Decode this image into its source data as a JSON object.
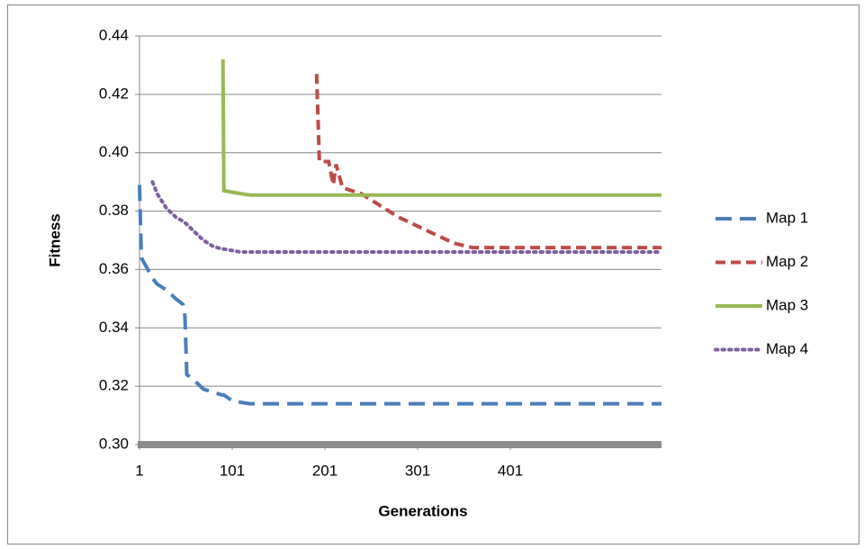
{
  "chart_data": {
    "type": "line",
    "x_label": "Generations",
    "y_label": "Fitness",
    "x": [
      1,
      3,
      10,
      15,
      20,
      30,
      40,
      48,
      50,
      52,
      60,
      70,
      80,
      90,
      91,
      92,
      101,
      110,
      120,
      140,
      160,
      180,
      192,
      195,
      205,
      210,
      213,
      220,
      240,
      260,
      280,
      300,
      320,
      340,
      360,
      400,
      450,
      500,
      564
    ],
    "series": [
      {
        "name": "Map 1",
        "color": "#4a7ebb",
        "dash": "long-dash",
        "values": [
          0.389,
          0.364,
          0.36,
          0.357,
          0.355,
          0.353,
          0.35,
          0.348,
          0.344,
          0.324,
          0.322,
          0.319,
          0.318,
          0.317,
          0.317,
          0.317,
          0.315,
          0.3145,
          0.314,
          0.314,
          0.314,
          0.314,
          0.314,
          0.314,
          0.314,
          0.314,
          0.314,
          0.314,
          0.314,
          0.314,
          0.314,
          0.314,
          0.314,
          0.314,
          0.314,
          0.314,
          0.314,
          0.314,
          0.314
        ]
      },
      {
        "name": "Map 2",
        "color": "#be4b48",
        "dash": "dash",
        "values": [
          null,
          null,
          null,
          null,
          null,
          null,
          null,
          null,
          null,
          null,
          null,
          null,
          null,
          null,
          null,
          null,
          null,
          null,
          null,
          null,
          null,
          null,
          0.427,
          0.397,
          0.397,
          0.389,
          0.396,
          0.388,
          0.386,
          0.382,
          0.378,
          0.375,
          0.372,
          0.369,
          0.3675,
          0.3675,
          0.3675,
          0.3675,
          0.3675
        ]
      },
      {
        "name": "Map 3",
        "color": "#98b954",
        "dash": "solid",
        "values": [
          null,
          null,
          null,
          null,
          null,
          null,
          null,
          null,
          null,
          null,
          null,
          null,
          null,
          null,
          0.432,
          0.387,
          0.3865,
          0.386,
          0.3855,
          0.3855,
          0.3855,
          0.3855,
          0.3855,
          0.3855,
          0.3855,
          0.3855,
          0.3855,
          0.3855,
          0.3855,
          0.3855,
          0.3855,
          0.3855,
          0.3855,
          0.3855,
          0.3855,
          0.3855,
          0.3855,
          0.3855,
          0.3855
        ]
      },
      {
        "name": "Map 4",
        "color": "#7d60a0",
        "dash": "dot",
        "values": [
          null,
          null,
          null,
          0.39,
          0.386,
          0.381,
          0.378,
          0.3765,
          0.376,
          0.3755,
          0.373,
          0.37,
          0.368,
          0.367,
          0.367,
          0.367,
          0.3665,
          0.366,
          0.366,
          0.366,
          0.366,
          0.366,
          0.366,
          0.366,
          0.366,
          0.366,
          0.366,
          0.366,
          0.366,
          0.366,
          0.366,
          0.366,
          0.366,
          0.366,
          0.366,
          0.366,
          0.366,
          0.366,
          0.366
        ]
      }
    ],
    "xlim": [
      1,
      564
    ],
    "xticks": [
      1,
      101,
      201,
      301,
      401
    ],
    "ylim": [
      0.3,
      0.44
    ],
    "yticks": [
      {
        "value": 0.3,
        "label": "0.30"
      },
      0.32,
      0.34,
      0.36,
      0.38,
      {
        "value": 0.4,
        "label": "0.40"
      },
      0.42,
      0.44
    ],
    "grid": true,
    "legend": "right"
  }
}
